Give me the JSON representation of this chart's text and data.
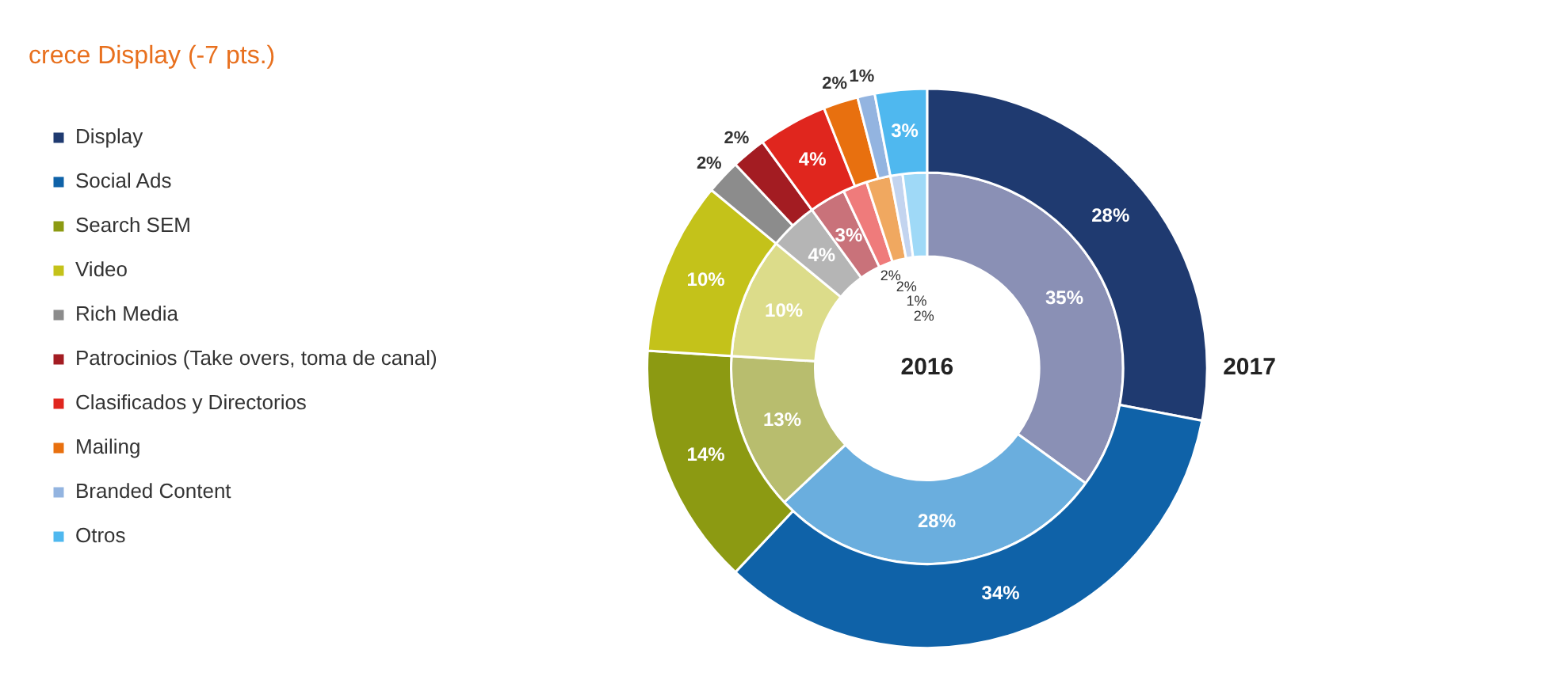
{
  "chart_data": {
    "type": "donut",
    "title": "crece Display (-7 pts.)",
    "categories": [
      "Display",
      "Social Ads",
      "Search SEM",
      "Video",
      "Rich Media",
      "Patrocinios (Take overs, toma de canal)",
      "Clasificados y Directorios",
      "Mailing",
      "Branded Content",
      "Otros"
    ],
    "series": [
      {
        "name": "2017",
        "values": [
          28,
          34,
          14,
          10,
          2,
          2,
          4,
          2,
          1,
          3
        ],
        "colors": [
          "#1f3a70",
          "#0f62a8",
          "#8c9a12",
          "#c4c21a",
          "#8c8c8c",
          "#a31c22",
          "#e0261e",
          "#e8700f",
          "#93b4e0",
          "#4fb8ef"
        ],
        "value_labels": [
          "28%",
          "34%",
          "14%",
          "10%",
          "2%",
          "2%",
          "4%",
          "2%",
          "1%",
          "3%"
        ]
      },
      {
        "name": "2016",
        "values": [
          35,
          28,
          13,
          10,
          4,
          3,
          2,
          2,
          1,
          2
        ],
        "colors": [
          "#8a90b5",
          "#6aaede",
          "#b8bd6e",
          "#dcdc8a",
          "#b5b5b5",
          "#c9727a",
          "#ef7b7b",
          "#f0a860",
          "#c3d4ef",
          "#9fd9f7"
        ],
        "value_labels": [
          "35%",
          "28%",
          "13%",
          "10%",
          "4%",
          "3%",
          "2%",
          "2%",
          "1%",
          "2%"
        ]
      }
    ],
    "legend": "left"
  }
}
